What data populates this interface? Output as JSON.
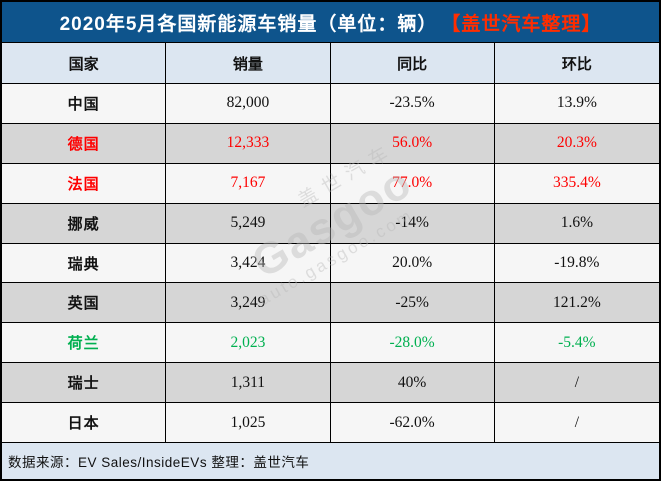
{
  "title": {
    "main": "2020年5月各国新能源车销量（单位：辆）",
    "tag": "【盖世汽车整理】"
  },
  "footer": {
    "text": "数据来源：EV Sales/InsideEVs 整理：盖世汽车"
  },
  "watermark": {
    "line1": "盖世汽车",
    "line2": "Gasgoo",
    "line3": "auto.gasgoo.com"
  },
  "colors": {
    "title_bg": "#0e548c",
    "title_text": "#ffffff",
    "title_tag": "#ff2d00",
    "header_bg": "#dce6f1",
    "footer_bg": "#dce6f1",
    "row_base": "#f6f6f6",
    "row_alt": "#d6d6d6",
    "red": "#fe0000",
    "green": "#00b050",
    "black": "#111111"
  },
  "chart_data": {
    "type": "table",
    "title": "2020年5月各国新能源车销量（单位：辆）【盖世汽车整理】",
    "columns": [
      "国家",
      "销量",
      "同比",
      "环比"
    ],
    "rows": [
      [
        "中国",
        "82,000",
        "-23.5%",
        "13.9%"
      ],
      [
        "德国",
        "12,333",
        "56.0%",
        "20.3%"
      ],
      [
        "法国",
        "7,167",
        "77.0%",
        "335.4%"
      ],
      [
        "挪威",
        "5,249",
        "-14%",
        "1.6%"
      ],
      [
        "瑞典",
        "3,424",
        "20.0%",
        "-19.8%"
      ],
      [
        "英国",
        "3,249",
        "-25%",
        "121.2%"
      ],
      [
        "荷兰",
        "2,023",
        "-28.0%",
        "-5.4%"
      ],
      [
        "瑞士",
        "1,311",
        "40%",
        "/"
      ],
      [
        "日本",
        "1,025",
        "-62.0%",
        "/"
      ]
    ],
    "row_styles": [
      "black",
      "red",
      "red",
      "black",
      "black",
      "black",
      "green",
      "black",
      "black"
    ],
    "source_note": "数据来源：EV Sales/InsideEVs 整理：盖世汽车"
  }
}
